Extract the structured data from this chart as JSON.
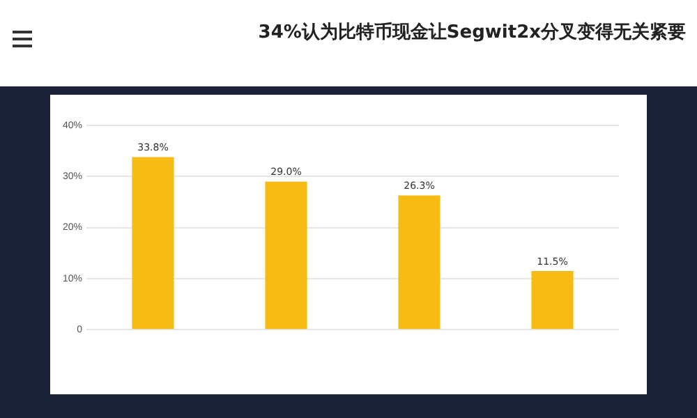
{
  "chart_data": {
    "type": "bar",
    "title": "34%认为比特币现金让Segwit2x分叉变得无关紧要",
    "categories": [
      null,
      null,
      null,
      null
    ],
    "values": [
      33.8,
      29.0,
      26.3,
      11.5
    ],
    "value_labels": [
      "33.8%",
      "29.0%",
      "26.3%",
      "11.5%"
    ],
    "color": "#f7bb16",
    "ylim": [
      0,
      40
    ],
    "yticks": [
      0,
      {
        "value": 10,
        "label": "10%"
      },
      {
        "value": 20,
        "label": "20%"
      },
      {
        "value": 30,
        "label": "30%"
      },
      {
        "value": 40,
        "label": "40%"
      }
    ],
    "grid": "y"
  }
}
